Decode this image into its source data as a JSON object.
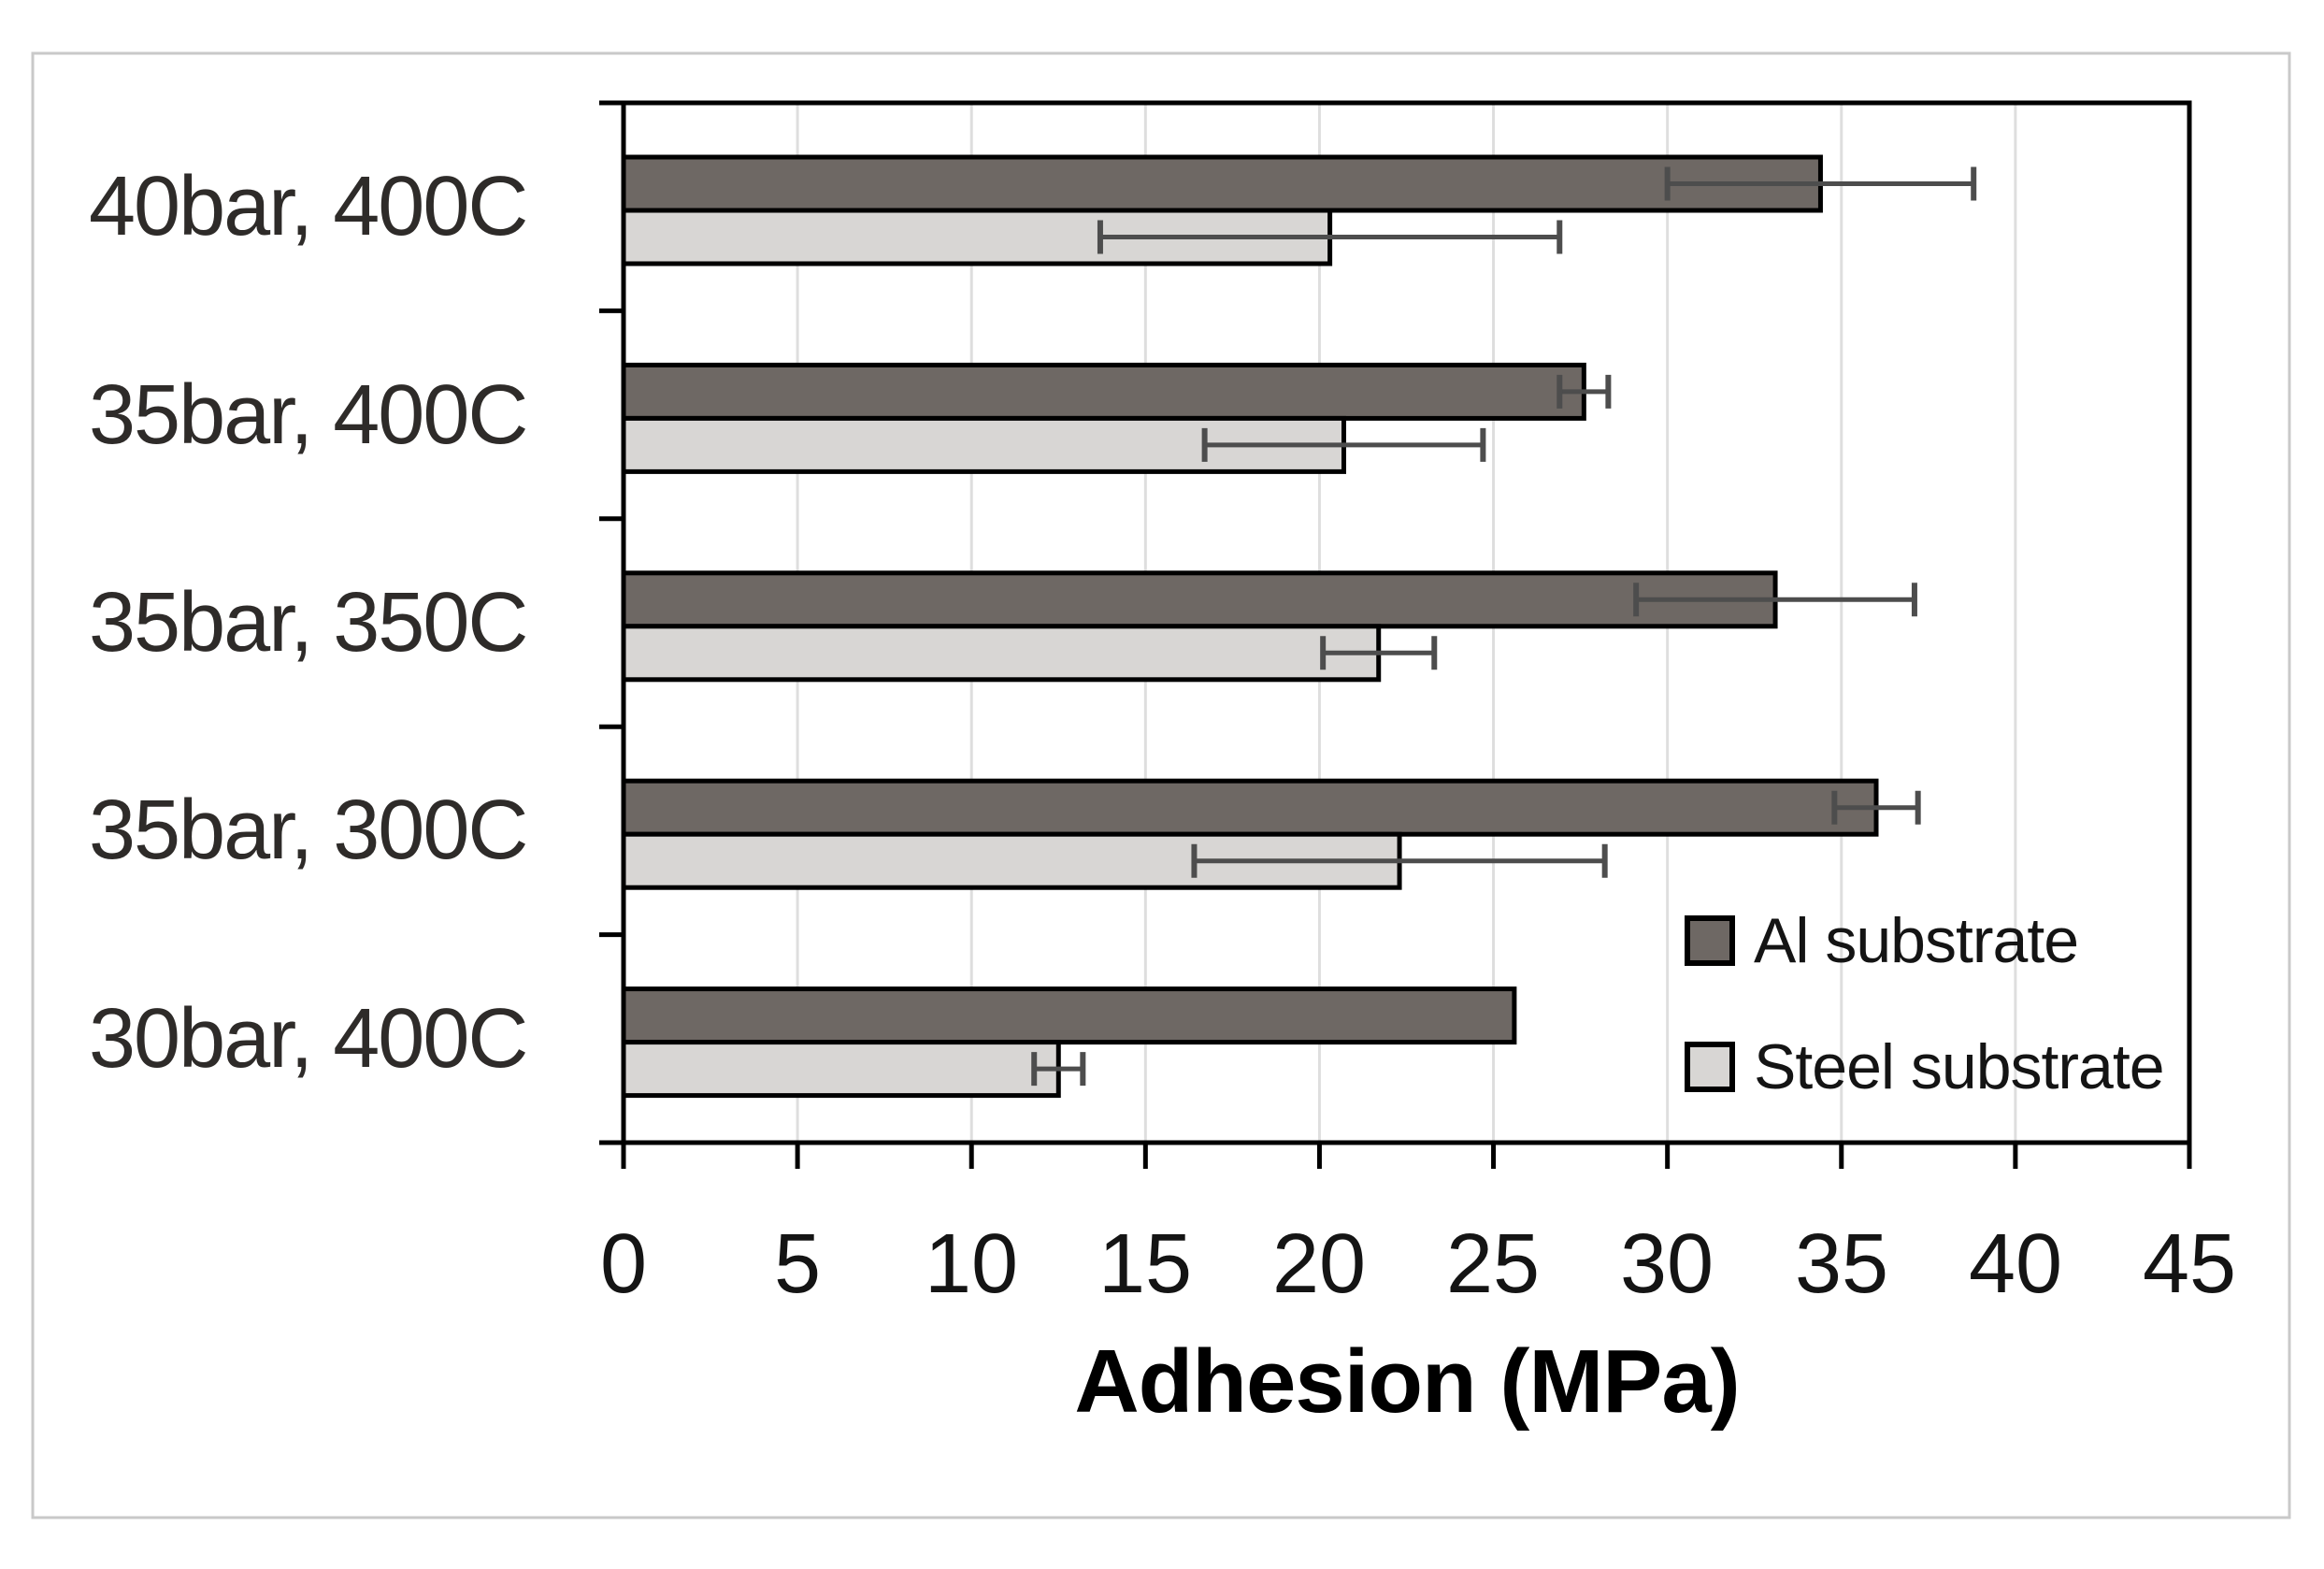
{
  "chart_data": {
    "type": "bar",
    "orientation": "horizontal",
    "title": "",
    "xlabel": "Adhesion (MPa)",
    "ylabel": "",
    "categories": [
      "40bar, 400C",
      "35bar, 400C",
      "35bar, 350C",
      "35bar, 300C",
      "30bar, 400C"
    ],
    "series": [
      {
        "name": "Al substrate",
        "color": "#6e6864",
        "values": [
          34.4,
          27.6,
          33.1,
          36.0,
          25.6
        ],
        "errors": [
          4.4,
          0.7,
          4.0,
          1.2,
          0
        ]
      },
      {
        "name": "Steel substrate",
        "color": "#d8d6d4",
        "values": [
          20.3,
          20.7,
          21.7,
          22.3,
          12.5
        ],
        "errors": [
          6.6,
          4.0,
          1.6,
          5.9,
          0.7
        ]
      }
    ],
    "xlim": [
      0,
      45
    ],
    "xticks": [
      0,
      5,
      10,
      15,
      20,
      25,
      30,
      35,
      40,
      45
    ],
    "grid": true,
    "legend_position": "inside-right",
    "error_bar_color": "#4d4d4d",
    "gridline_color": "#dedede",
    "bar_border_color": "#000000",
    "axis_color": "#000000",
    "text_color": "#141414",
    "figure_border_color": "#c9c9c9"
  }
}
